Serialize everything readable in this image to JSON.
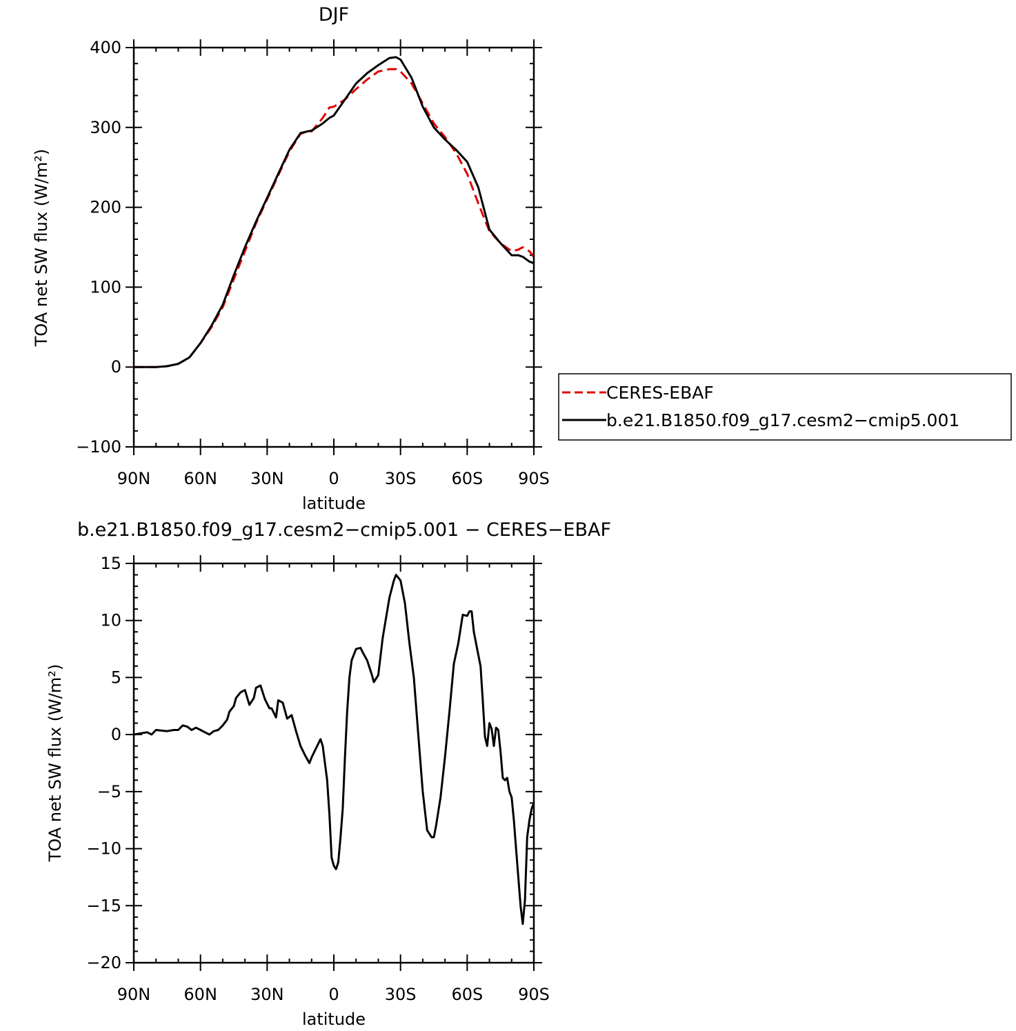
{
  "chart_data": [
    {
      "type": "line",
      "title": "DJF",
      "xlabel": "latitude",
      "ylabel": "TOA net SW flux (W/m²)",
      "ylim": [
        -100,
        400
      ],
      "yticks": [
        -100,
        0,
        100,
        200,
        300,
        400
      ],
      "xlim": [
        90,
        -90
      ],
      "xticks": [
        {
          "value": 90,
          "label": "90N"
        },
        {
          "value": 60,
          "label": "60N"
        },
        {
          "value": 30,
          "label": "30N"
        },
        {
          "value": 0,
          "label": "0"
        },
        {
          "value": -30,
          "label": "30S"
        },
        {
          "value": -60,
          "label": "60S"
        },
        {
          "value": -90,
          "label": "90S"
        }
      ],
      "grid": false,
      "legend": "right",
      "series": [
        {
          "name": "CERES-EBAF",
          "color": "#e00000",
          "dash": "dashed",
          "x": [
            90,
            85,
            80,
            75,
            70,
            65,
            60,
            55,
            50,
            45,
            40,
            35,
            30,
            25,
            20,
            15,
            12,
            10,
            5,
            2,
            0,
            -5,
            -10,
            -15,
            -20,
            -25,
            -28,
            -30,
            -35,
            -40,
            -45,
            -50,
            -55,
            -60,
            -65,
            -70,
            -75,
            -80,
            -83,
            -85,
            -88,
            -90
          ],
          "y": [
            0,
            0,
            0,
            1,
            4,
            12,
            30,
            50,
            75,
            110,
            145,
            180,
            210,
            240,
            270,
            292,
            295,
            295,
            312,
            325,
            326,
            335,
            348,
            360,
            370,
            373,
            373,
            370,
            355,
            330,
            305,
            288,
            268,
            242,
            205,
            170,
            155,
            145,
            147,
            150,
            145,
            138
          ]
        },
        {
          "name": "b.e21.B1850.f09_g17.cesm2−cmip5.001",
          "color": "#000000",
          "dash": "solid",
          "x": [
            90,
            85,
            80,
            75,
            70,
            65,
            60,
            55,
            50,
            45,
            40,
            35,
            30,
            25,
            20,
            15,
            12,
            10,
            5,
            2,
            0,
            -5,
            -10,
            -15,
            -20,
            -25,
            -28,
            -30,
            -35,
            -40,
            -45,
            -50,
            -55,
            -60,
            -65,
            -70,
            -75,
            -80,
            -83,
            -85,
            -88,
            -90
          ],
          "y": [
            0,
            0,
            0,
            1,
            4,
            12,
            30,
            52,
            78,
            115,
            150,
            182,
            212,
            242,
            272,
            293,
            295,
            296,
            305,
            312,
            315,
            335,
            355,
            368,
            378,
            387,
            388,
            385,
            362,
            326,
            300,
            285,
            272,
            257,
            225,
            172,
            155,
            140,
            140,
            138,
            132,
            130
          ]
        }
      ]
    },
    {
      "type": "line",
      "title": "b.e21.B1850.f09_g17.cesm2−cmip5.001 − CERES−EBAF",
      "xlabel": "latitude",
      "ylabel": "TOA net SW flux (W/m²)",
      "ylim": [
        -20,
        15
      ],
      "yticks": [
        -20,
        -15,
        -10,
        -5,
        0,
        5,
        10,
        15
      ],
      "xlim": [
        90,
        -90
      ],
      "xticks": [
        {
          "value": 90,
          "label": "90N"
        },
        {
          "value": 60,
          "label": "60N"
        },
        {
          "value": 30,
          "label": "30N"
        },
        {
          "value": 0,
          "label": "0"
        },
        {
          "value": -30,
          "label": "30S"
        },
        {
          "value": -60,
          "label": "60S"
        },
        {
          "value": -90,
          "label": "90S"
        }
      ],
      "grid": false,
      "series": [
        {
          "color": "#000000",
          "dash": "solid",
          "x": [
            90,
            84,
            82,
            80,
            75,
            72,
            70,
            68,
            66,
            64,
            62,
            60,
            58,
            56,
            54,
            52,
            50,
            48,
            47,
            45,
            44,
            42,
            40,
            38,
            36,
            35,
            33,
            31,
            29,
            28,
            26,
            25,
            23,
            21,
            19,
            17,
            15,
            14,
            13,
            11,
            10,
            8,
            6,
            5,
            3,
            2,
            1,
            0,
            -1,
            -2,
            -3,
            -4,
            -5,
            -6,
            -7,
            -8,
            -10,
            -12,
            -13,
            -15,
            -17,
            -18,
            -20,
            -22,
            -25,
            -27,
            -28,
            -30,
            -32,
            -34,
            -36,
            -38,
            -40,
            -42,
            -44,
            -45,
            -46,
            -48,
            -50,
            -52,
            -54,
            -56,
            -58,
            -60,
            -61,
            -62,
            -63,
            -65,
            -66,
            -67,
            -68,
            -69,
            -70,
            -71,
            -72,
            -73,
            -74,
            -75,
            -76,
            -77,
            -78,
            -79,
            -80,
            -81,
            -82,
            -84,
            -85,
            -86,
            -87,
            -88,
            -89,
            -90
          ],
          "y": [
            0,
            0.2,
            0,
            0.4,
            0.3,
            0.4,
            0.4,
            0.8,
            0.7,
            0.4,
            0.6,
            0.4,
            0.2,
            0,
            0.3,
            0.4,
            0.8,
            1.3,
            2,
            2.5,
            3.2,
            3.7,
            3.9,
            2.6,
            3.2,
            4.1,
            4.3,
            3.1,
            2.3,
            2.3,
            1.5,
            3,
            2.8,
            1.4,
            1.7,
            0.3,
            -1,
            -1.4,
            -1.8,
            -2.5,
            -2,
            -1.2,
            -0.4,
            -1,
            -4,
            -7,
            -10.8,
            -11.5,
            -11.8,
            -11.2,
            -9,
            -6.5,
            -2,
            2,
            5,
            6.5,
            7.5,
            7.6,
            7.2,
            6.5,
            5.3,
            4.6,
            5.2,
            8.5,
            12,
            13.5,
            14,
            13.5,
            11.5,
            8,
            5,
            0,
            -5,
            -8.4,
            -9,
            -9,
            -8,
            -5.5,
            -2,
            2,
            6.2,
            8,
            10.5,
            10.4,
            10.8,
            10.8,
            9,
            7,
            6,
            3,
            -0.2,
            -1,
            1,
            0.5,
            -1,
            0.6,
            0.4,
            -1.5,
            -3.8,
            -4,
            -3.8,
            -5,
            -5.5,
            -7.5,
            -10,
            -15,
            -16.6,
            -14.5,
            -9,
            -7.5,
            -6.5,
            -6
          ]
        }
      ]
    }
  ]
}
